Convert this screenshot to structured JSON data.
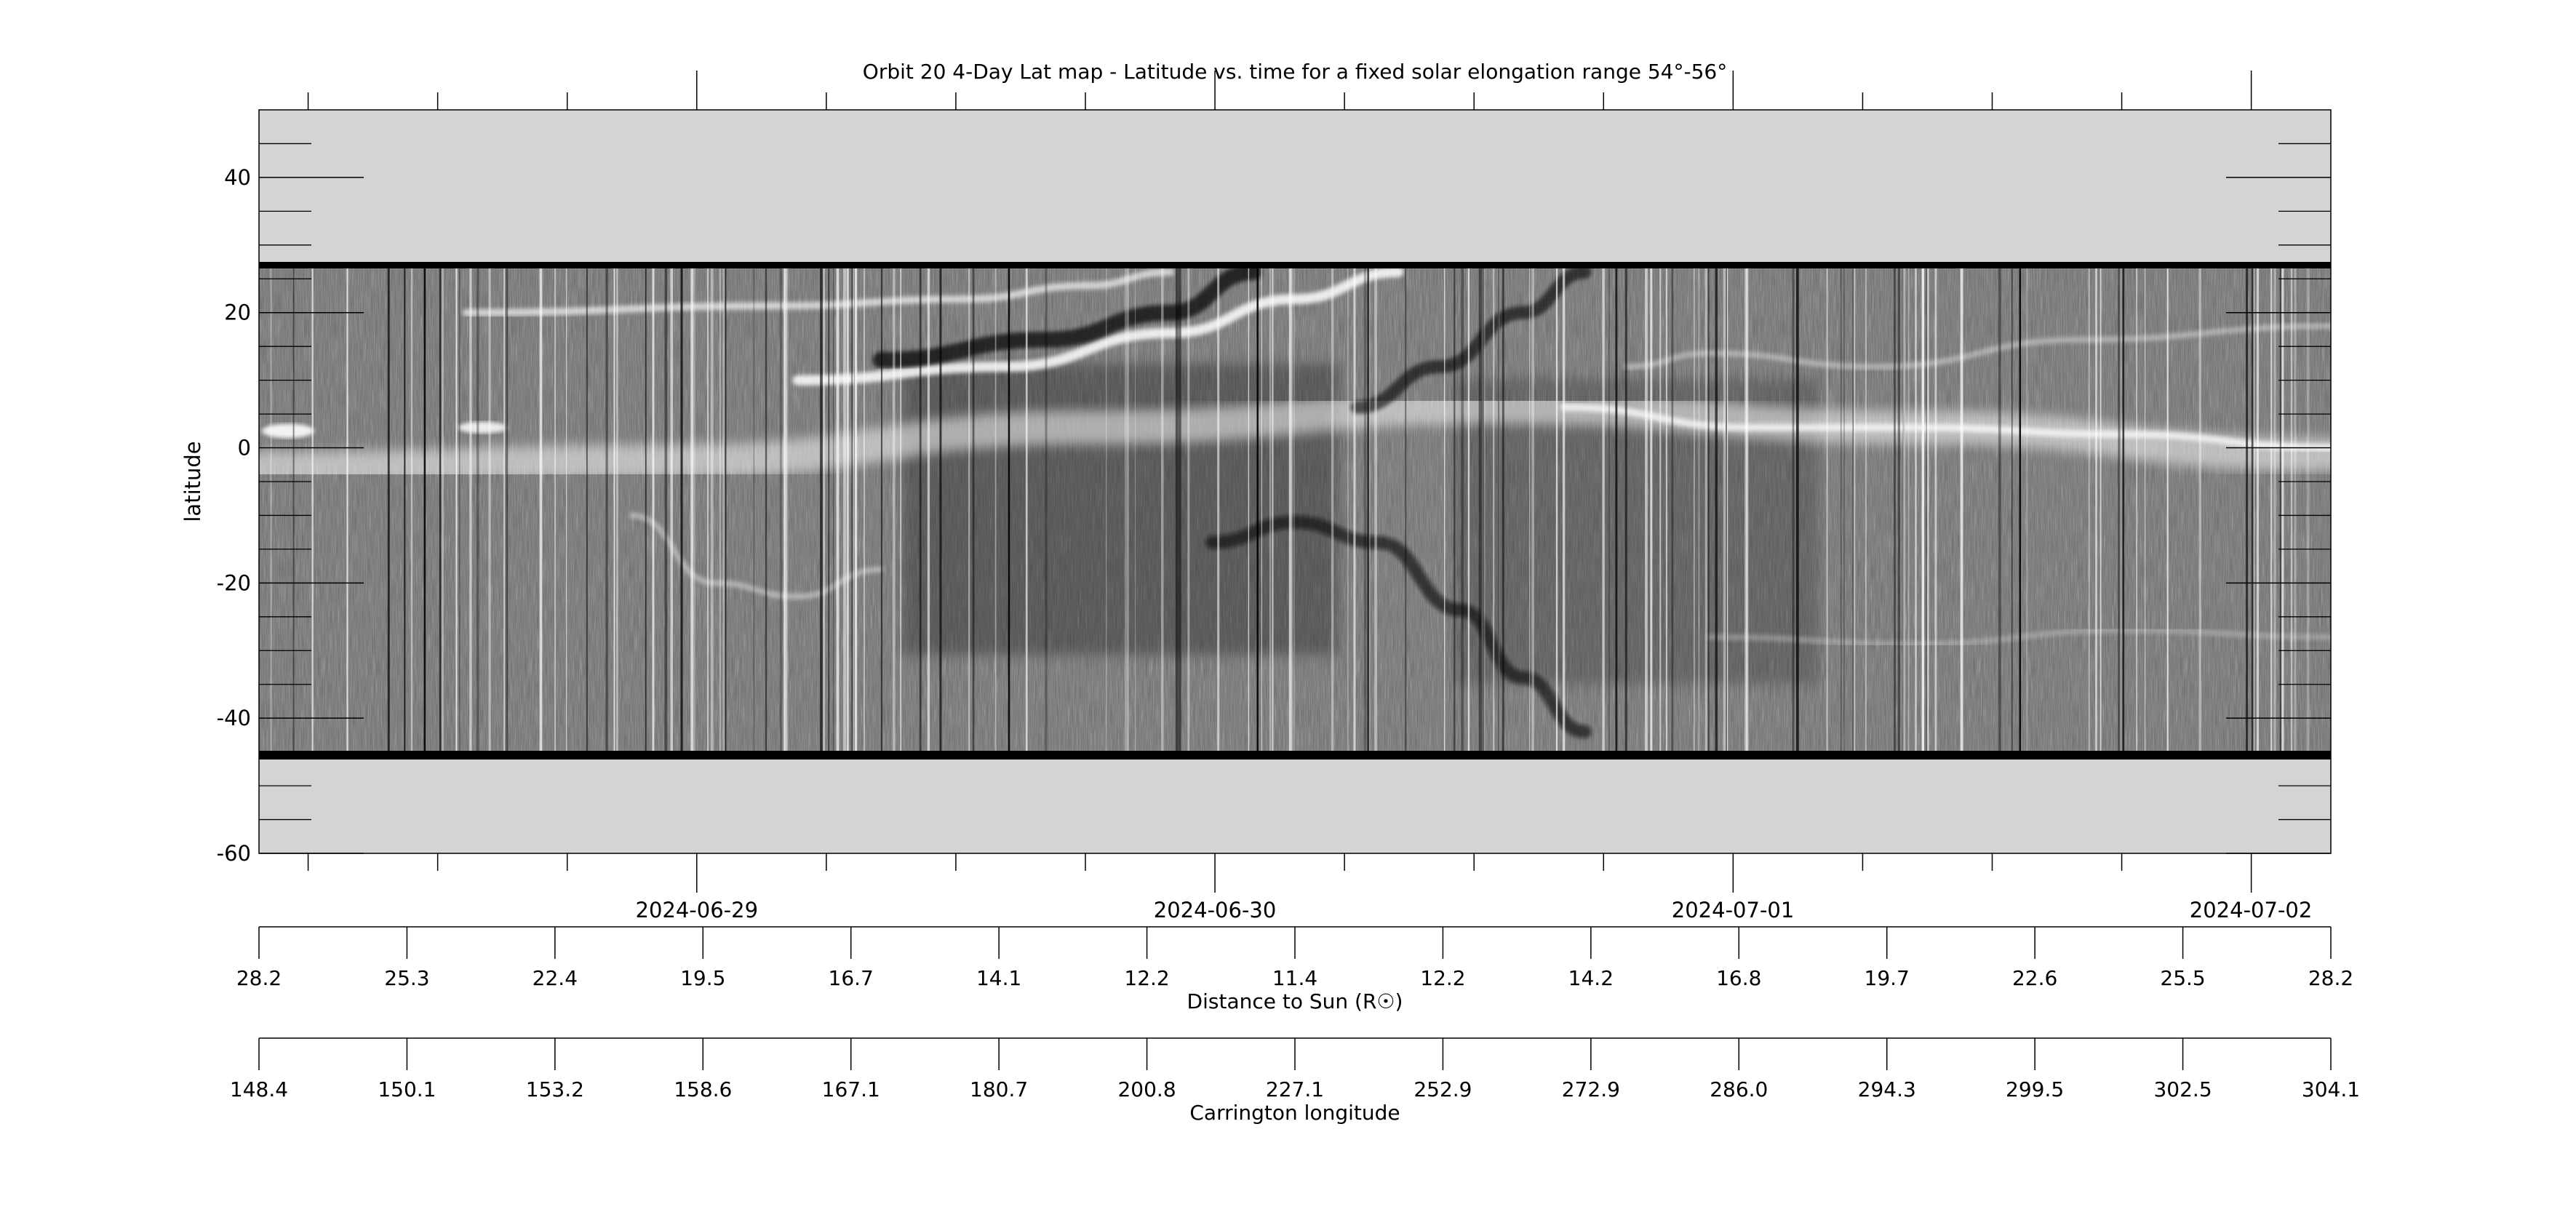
{
  "chart_data": {
    "type": "heatmap",
    "title": "Orbit 20 4-Day Lat map - Latitude vs. time for a fixed solar elongation range 54°-56°",
    "ylabel": "latitude",
    "ylim": [
      -60,
      50
    ],
    "y_ticks": [
      40,
      20,
      0,
      -20,
      -40,
      -60
    ],
    "y_tick_labels": [
      "40",
      "20",
      "0",
      "-20",
      "-40",
      "-60"
    ],
    "data_band_lat": [
      -46,
      26.5
    ],
    "colormap": "grayscale",
    "date_ticks": [
      "2024-06-29",
      "2024-06-30",
      "2024-07-01",
      "2024-07-02"
    ],
    "axis2": {
      "label": "Distance to Sun (R☉)",
      "tick_labels": [
        "28.2",
        "25.3",
        "22.4",
        "19.5",
        "16.7",
        "14.1",
        "12.2",
        "11.4",
        "12.2",
        "14.2",
        "16.8",
        "19.7",
        "22.6",
        "25.5",
        "28.2"
      ]
    },
    "axis3": {
      "label": "Carrington longitude",
      "tick_labels": [
        "148.4",
        "150.1",
        "153.2",
        "158.6",
        "167.1",
        "180.7",
        "200.8",
        "227.1",
        "252.9",
        "272.9",
        "286.0",
        "294.3",
        "299.5",
        "302.5",
        "304.1"
      ]
    },
    "features": [
      {
        "name": "streamer",
        "points": [
          [
            0.0,
            -3
          ],
          [
            0.2,
            -2
          ],
          [
            0.4,
            3
          ],
          [
            0.6,
            6
          ],
          [
            0.8,
            3
          ],
          [
            1.0,
            -1
          ]
        ]
      },
      {
        "name": "bright-track-a",
        "points": [
          [
            0.26,
            10
          ],
          [
            0.36,
            12
          ],
          [
            0.44,
            17
          ],
          [
            0.5,
            22
          ],
          [
            0.55,
            26
          ]
        ]
      },
      {
        "name": "bright-track-b",
        "points": [
          [
            0.1,
            20
          ],
          [
            0.25,
            21
          ],
          [
            0.34,
            22
          ],
          [
            0.4,
            24
          ],
          [
            0.44,
            26
          ]
        ]
      },
      {
        "name": "dark-track-a",
        "points": [
          [
            0.3,
            13
          ],
          [
            0.38,
            16
          ],
          [
            0.44,
            20
          ],
          [
            0.48,
            26
          ]
        ]
      },
      {
        "name": "dark-track-b",
        "points": [
          [
            0.53,
            6
          ],
          [
            0.57,
            12
          ],
          [
            0.61,
            20
          ],
          [
            0.64,
            26
          ]
        ]
      },
      {
        "name": "arc-feature",
        "points": [
          [
            0.46,
            -14
          ],
          [
            0.5,
            -11
          ],
          [
            0.54,
            -14
          ],
          [
            0.58,
            -24
          ],
          [
            0.61,
            -34
          ],
          [
            0.64,
            -42
          ]
        ]
      },
      {
        "name": "bright-track-c",
        "points": [
          [
            0.63,
            6
          ],
          [
            0.72,
            3
          ],
          [
            0.8,
            3
          ],
          [
            0.9,
            2
          ],
          [
            1.0,
            0
          ]
        ]
      },
      {
        "name": "bright-arc",
        "points": [
          [
            0.18,
            -10
          ],
          [
            0.22,
            -20
          ],
          [
            0.26,
            -22
          ],
          [
            0.3,
            -18
          ]
        ]
      },
      {
        "name": "bright-track-d",
        "points": [
          [
            0.66,
            12
          ],
          [
            0.7,
            14
          ],
          [
            0.78,
            12
          ],
          [
            0.88,
            16
          ],
          [
            1.0,
            18
          ]
        ]
      },
      {
        "name": "track-e",
        "points": [
          [
            0.7,
            -28
          ],
          [
            0.8,
            -29
          ],
          [
            0.9,
            -27
          ],
          [
            1.0,
            -28
          ]
        ]
      }
    ]
  }
}
